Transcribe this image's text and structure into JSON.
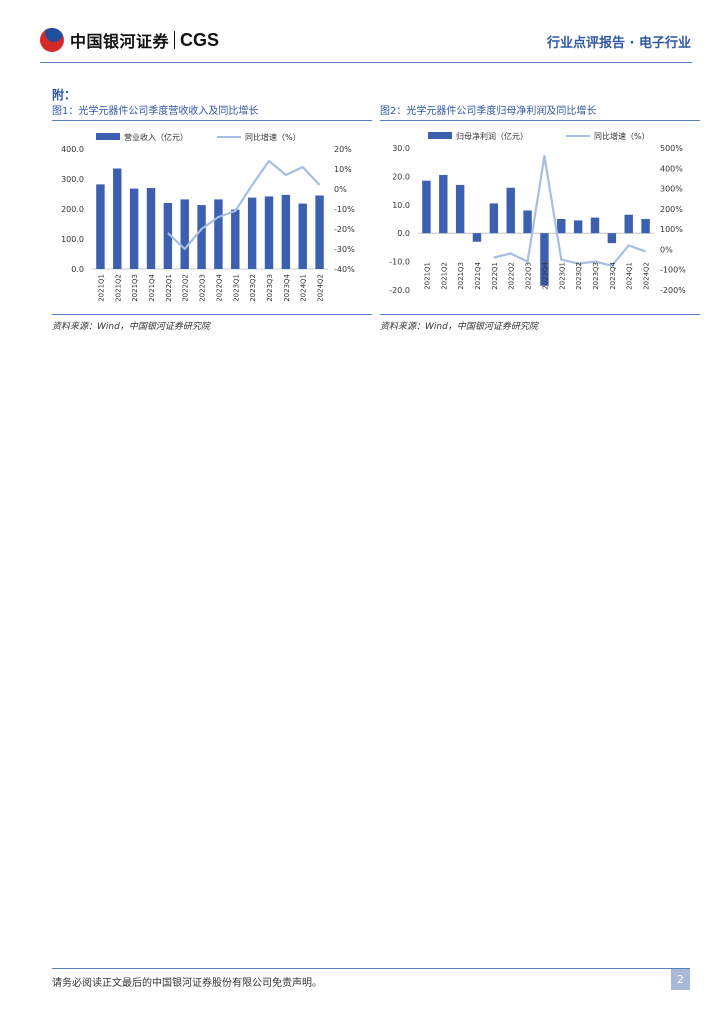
{
  "header": {
    "brand_cn": "中国银河证券",
    "brand_en": "CGS",
    "report_type": "行业点评报告 · 电子行业"
  },
  "appendix_label": "附：",
  "charts": [
    {
      "figure_title": "图1：光学元器件公司季度营收收入及同比增长",
      "source": "资料来源：Wind，中国银河证券研究院"
    },
    {
      "figure_title": "图2：光学元器件公司季度归母净利润及同比增长",
      "source": "资料来源：Wind，中国银河证券研究院"
    }
  ],
  "chart_data": [
    {
      "type": "bar",
      "bar_color": "#3c5fb0",
      "line_color": "#a8bde3",
      "categories": [
        "2021Q1",
        "2021Q2",
        "2021Q3",
        "2021Q4",
        "2022Q1",
        "2022Q2",
        "2022Q3",
        "2022Q4",
        "2023Q1",
        "2023Q2",
        "2023Q3",
        "2023Q4",
        "2024Q1",
        "2024Q2"
      ],
      "series": [
        {
          "name": "营业收入（亿元）",
          "axis": "left",
          "kind": "bar",
          "values": [
            282,
            335,
            268,
            270,
            220,
            232,
            213,
            232,
            198,
            238,
            242,
            247,
            218,
            245
          ]
        },
        {
          "name": "同比增速（%）",
          "axis": "right",
          "kind": "line",
          "values": [
            null,
            null,
            null,
            null,
            -22,
            -30,
            -20,
            -14,
            -11,
            2,
            14,
            7,
            11,
            2
          ]
        }
      ],
      "left_ticks": [
        "400.0",
        "300.0",
        "200.0",
        "100.0",
        "0.0"
      ],
      "right_ticks": [
        "20%",
        "10%",
        "0%",
        "-10%",
        "-20%",
        "-30%",
        "-40%"
      ],
      "ylim_left": [
        0,
        400
      ],
      "ylim_right": [
        -40,
        20
      ]
    },
    {
      "type": "bar",
      "bar_color": "#3c5fb0",
      "line_color": "#a8bde3",
      "categories": [
        "2021Q1",
        "2021Q2",
        "2021Q3",
        "2021Q4",
        "2022Q1",
        "2022Q2",
        "2022Q3",
        "2022Q4",
        "2023Q1",
        "2023Q2",
        "2023Q3",
        "2023Q4",
        "2024Q1",
        "2024Q2"
      ],
      "series": [
        {
          "name": "归母净利润（亿元）",
          "axis": "left",
          "kind": "bar",
          "values": [
            18.5,
            20.5,
            17.0,
            -3.0,
            10.5,
            16.0,
            8.0,
            -18.5,
            5.0,
            4.5,
            5.5,
            -3.5,
            6.5,
            5.0
          ]
        },
        {
          "name": "同比增速（%）",
          "axis": "right",
          "kind": "line",
          "values": [
            null,
            null,
            null,
            null,
            -40,
            -20,
            -60,
            460,
            -50,
            -70,
            -60,
            -80,
            20,
            -10
          ]
        }
      ],
      "left_ticks": [
        "30.0",
        "20.0",
        "10.0",
        "0.0",
        "-10.0",
        "-20.0"
      ],
      "right_ticks": [
        "500%",
        "400%",
        "300%",
        "200%",
        "100%",
        "0%",
        "-100%",
        "-200%"
      ],
      "ylim_left": [
        -20,
        30
      ],
      "ylim_right": [
        -200,
        500
      ]
    }
  ],
  "footer": {
    "disclaimer": "请务必阅读正文最后的中国银河证券股份有限公司免责声明。",
    "page_number": "2"
  }
}
